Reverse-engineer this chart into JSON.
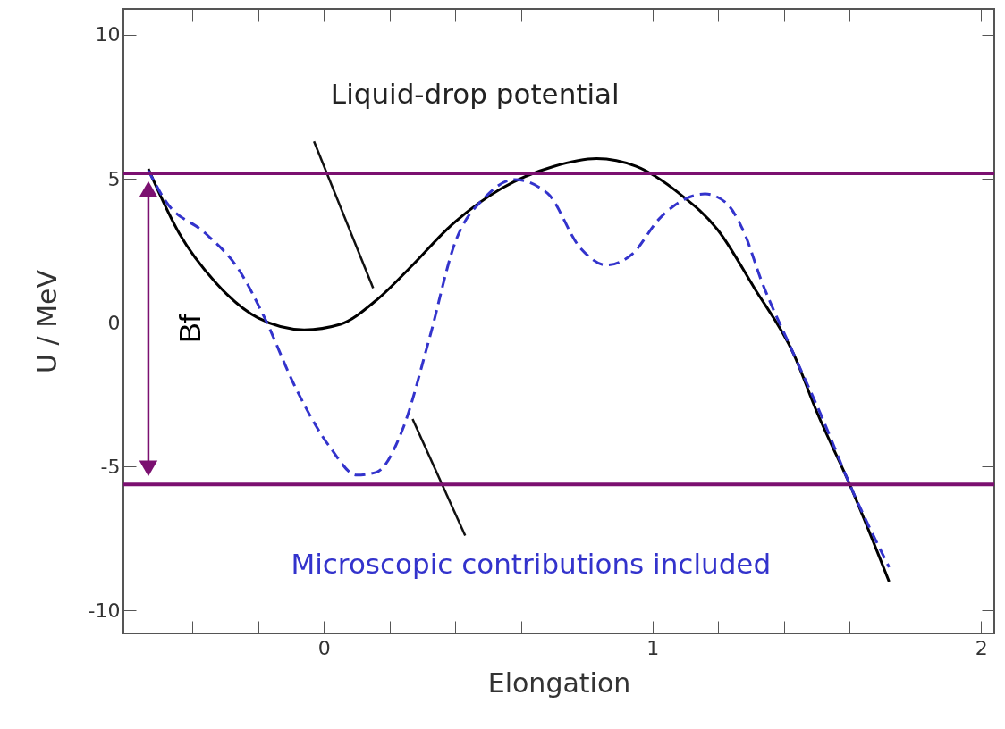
{
  "chart_data": {
    "type": "line",
    "xlabel": "Elongation",
    "ylabel": "U / MeV",
    "xlim": [
      -0.61,
      2.04
    ],
    "ylim": [
      -10.8,
      10.9
    ],
    "xticks": [
      {
        "value": -0.4,
        "label": null
      },
      {
        "value": -0.2,
        "label": null
      },
      0,
      {
        "value": 0.2,
        "label": null
      },
      {
        "value": 0.4,
        "label": null
      },
      {
        "value": 0.6,
        "label": null
      },
      {
        "value": 0.8,
        "label": null
      },
      1,
      {
        "value": 1.2,
        "label": null
      },
      {
        "value": 1.4,
        "label": null
      },
      {
        "value": 1.6,
        "label": null
      },
      {
        "value": 1.8,
        "label": null
      },
      2
    ],
    "yticks": [
      -10,
      -5,
      0,
      5,
      10
    ],
    "grid": false,
    "series": [
      {
        "name": "Liquid-drop potential",
        "color": "#000000",
        "line_style": "solid",
        "x": [
          -0.534,
          -0.44,
          -0.33,
          -0.2,
          -0.06,
          0.05,
          0.16,
          0.27,
          0.38,
          0.54,
          0.7,
          0.83,
          0.95,
          1.08,
          1.2,
          1.31,
          1.43,
          1.5,
          1.6,
          1.72
        ],
        "values": [
          5.34,
          3.1,
          1.4,
          0.16,
          -0.25,
          -0.06,
          0.78,
          2.0,
          3.3,
          4.66,
          5.43,
          5.7,
          5.43,
          4.5,
          3.2,
          1.2,
          -1.1,
          -3.1,
          -5.62,
          -9.0
        ]
      },
      {
        "name": "Microscopic contributions included",
        "color": "#3333cc",
        "line_style": "dashed",
        "x": [
          -0.534,
          -0.48,
          -0.36,
          -0.26,
          -0.18,
          -0.09,
          0.02,
          0.1,
          0.16,
          0.24,
          0.32,
          0.4,
          0.49,
          0.58,
          0.68,
          0.78,
          0.86,
          0.94,
          1.02,
          1.1,
          1.16,
          1.22,
          1.28,
          1.33,
          1.43,
          1.52,
          1.6,
          1.72
        ],
        "values": [
          5.28,
          4.2,
          3.1,
          1.86,
          0.16,
          -2.17,
          -4.35,
          -5.3,
          -5.2,
          -3.7,
          -0.6,
          2.8,
          4.35,
          4.97,
          4.5,
          2.6,
          2.0,
          2.4,
          3.6,
          4.3,
          4.47,
          4.2,
          3.1,
          1.5,
          -1.1,
          -3.4,
          -5.62,
          -8.5
        ]
      }
    ],
    "ref_lines": [
      {
        "axis": "y",
        "value": 5.19,
        "color": "#7b1070"
      },
      {
        "axis": "y",
        "value": -5.62,
        "color": "#7b1070"
      }
    ],
    "annotations": [
      "Bf"
    ]
  }
}
